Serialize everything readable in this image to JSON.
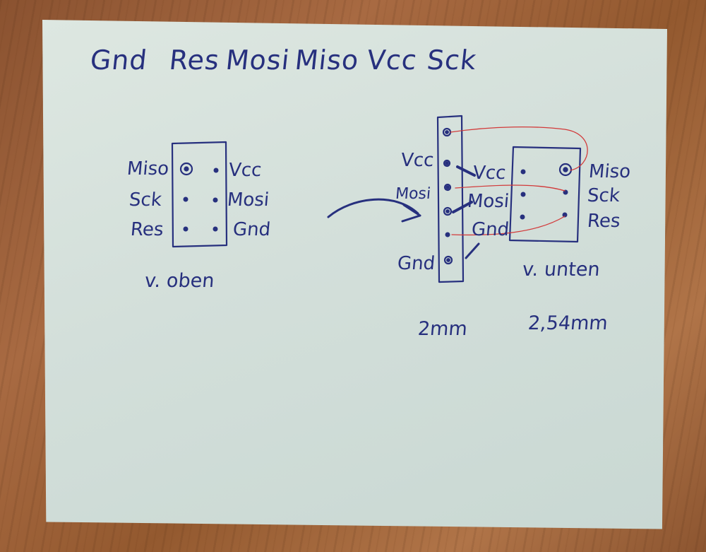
{
  "header_pins": [
    "Gnd",
    "Res",
    "Mosi",
    "Miso",
    "Vcc",
    "Sck"
  ],
  "left_diagram": {
    "left_labels": [
      "Miso",
      "Sck",
      "Res"
    ],
    "right_labels": [
      "Vcc",
      "Mosi",
      "Gnd"
    ],
    "caption": "v. oben"
  },
  "right_diagram": {
    "strip_labels": [
      "Vcc",
      "Mosi",
      "Gnd"
    ],
    "connector_left_labels": [
      "Vcc",
      "Mosi",
      "Gnd"
    ],
    "connector_right_labels": [
      "Miso",
      "Sck",
      "Res"
    ],
    "caption": "v. unten",
    "pitch_left": "2mm",
    "pitch_right": "2,54mm"
  },
  "colors": {
    "ink": "#27307e",
    "red_line": "#d23a3a",
    "paper": "#d6e2dc"
  }
}
